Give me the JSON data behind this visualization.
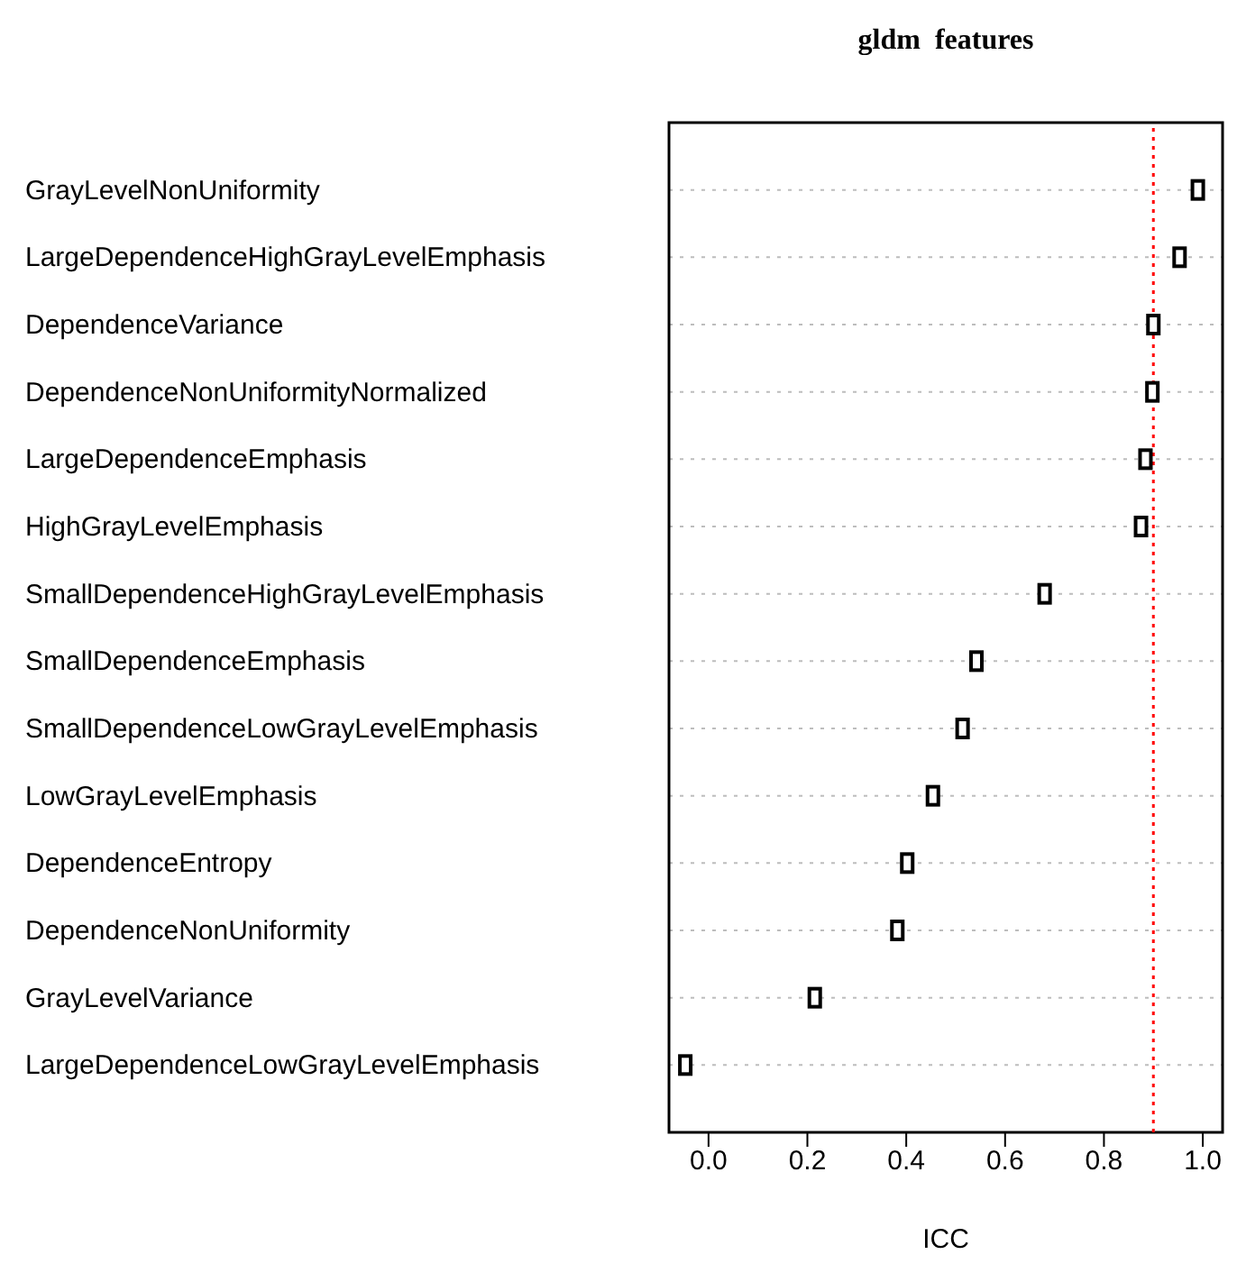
{
  "chart_data": {
    "type": "scatter",
    "orientation": "horizontal",
    "title": "gldm  features",
    "xlabel": "ICC",
    "categories": [
      "GrayLevelNonUniformity",
      "LargeDependenceHighGrayLevelEmphasis",
      "DependenceVariance",
      "DependenceNonUniformityNormalized",
      "LargeDependenceEmphasis",
      "HighGrayLevelEmphasis",
      "SmallDependenceHighGrayLevelEmphasis",
      "SmallDependenceEmphasis",
      "SmallDependenceLowGrayLevelEmphasis",
      "LowGrayLevelEmphasis",
      "DependenceEntropy",
      "DependenceNonUniformity",
      "GrayLevelVariance",
      "LargeDependenceLowGrayLevelEmphasis"
    ],
    "series": [
      {
        "color": "#000000",
        "values": [
          0.99,
          0.953,
          0.9,
          0.898,
          0.884,
          0.875,
          0.68,
          0.542,
          0.514,
          0.454,
          0.402,
          0.382,
          0.215,
          -0.047
        ]
      }
    ],
    "xlim": [
      -0.08,
      1.04
    ],
    "xticks": [
      {
        "value": 0,
        "label": "0.0"
      },
      {
        "value": 0.2,
        "label": "0.2"
      },
      {
        "value": 0.4,
        "label": "0.4"
      },
      {
        "value": 0.6,
        "label": "0.6"
      },
      {
        "value": 0.8,
        "label": "0.8"
      },
      {
        "value": 1,
        "label": "1.0"
      }
    ],
    "ref_lines": [
      {
        "axis": "x",
        "value": 0.9,
        "color": "#ff0000",
        "line_style": "dotted"
      }
    ],
    "grid": "y",
    "marker": "square"
  }
}
